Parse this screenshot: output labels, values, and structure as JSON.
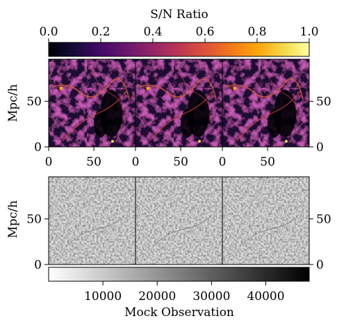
{
  "chart_data": [
    {
      "type": "heatmap",
      "name": "sn-ratio-maps",
      "panels": 3,
      "colorbar": {
        "label": "S/N Ratio",
        "colormap": "inferno",
        "range": [
          0.0,
          1.0
        ],
        "ticks": [
          "0.0",
          "0.2",
          "0.4",
          "0.6",
          "0.8",
          "1.0"
        ],
        "placement": "top"
      },
      "xlabel": "",
      "ylabel": "Mpc/h",
      "xticks": [
        "0",
        "50",
        "0",
        "50",
        "0",
        "50"
      ],
      "yticks_left": [
        "0",
        "50"
      ],
      "yticks_right": [
        "0",
        "50"
      ],
      "xlim": [
        0,
        96
      ],
      "ylim": [
        0,
        96
      ]
    },
    {
      "type": "heatmap",
      "name": "mock-observation-maps",
      "panels": 3,
      "colorbar": {
        "label": "Mock Observation",
        "colormap": "gray_r",
        "range": [
          0,
          48000
        ],
        "ticks": [
          "10000",
          "20000",
          "30000",
          "40000"
        ],
        "placement": "bottom"
      },
      "ylabel": "Mpc/h",
      "yticks_left": [
        "0",
        "50"
      ],
      "yticks_right": [
        "0",
        "50"
      ],
      "ylim": [
        0,
        96
      ]
    }
  ]
}
